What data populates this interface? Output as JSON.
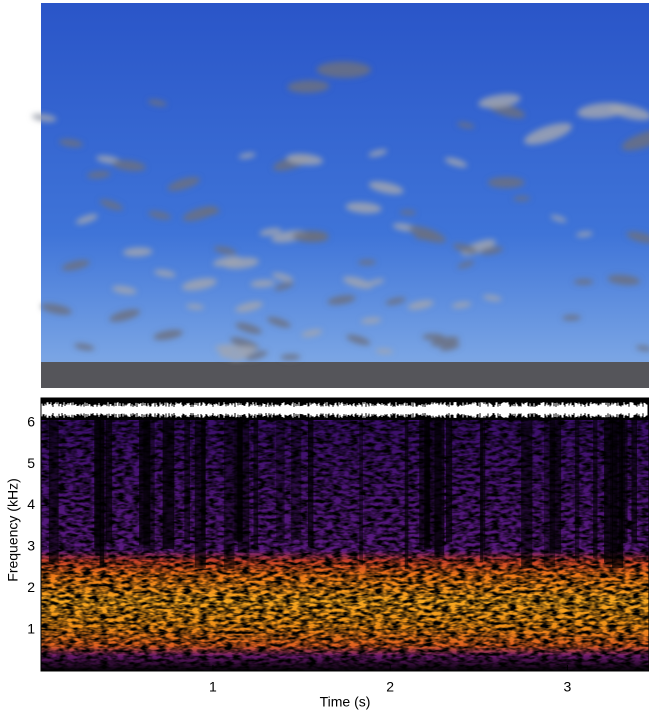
{
  "chart_data": {
    "type": "spectrogram",
    "xlabel": "Time (s)",
    "ylabel": "Frequency (kHz)",
    "xlim": [
      0.03,
      3.46
    ],
    "xticks": [
      1,
      2,
      3
    ],
    "ylim": [
      0,
      6.6
    ],
    "yticks": [
      1,
      2,
      3,
      4,
      5,
      6
    ]
  }
}
